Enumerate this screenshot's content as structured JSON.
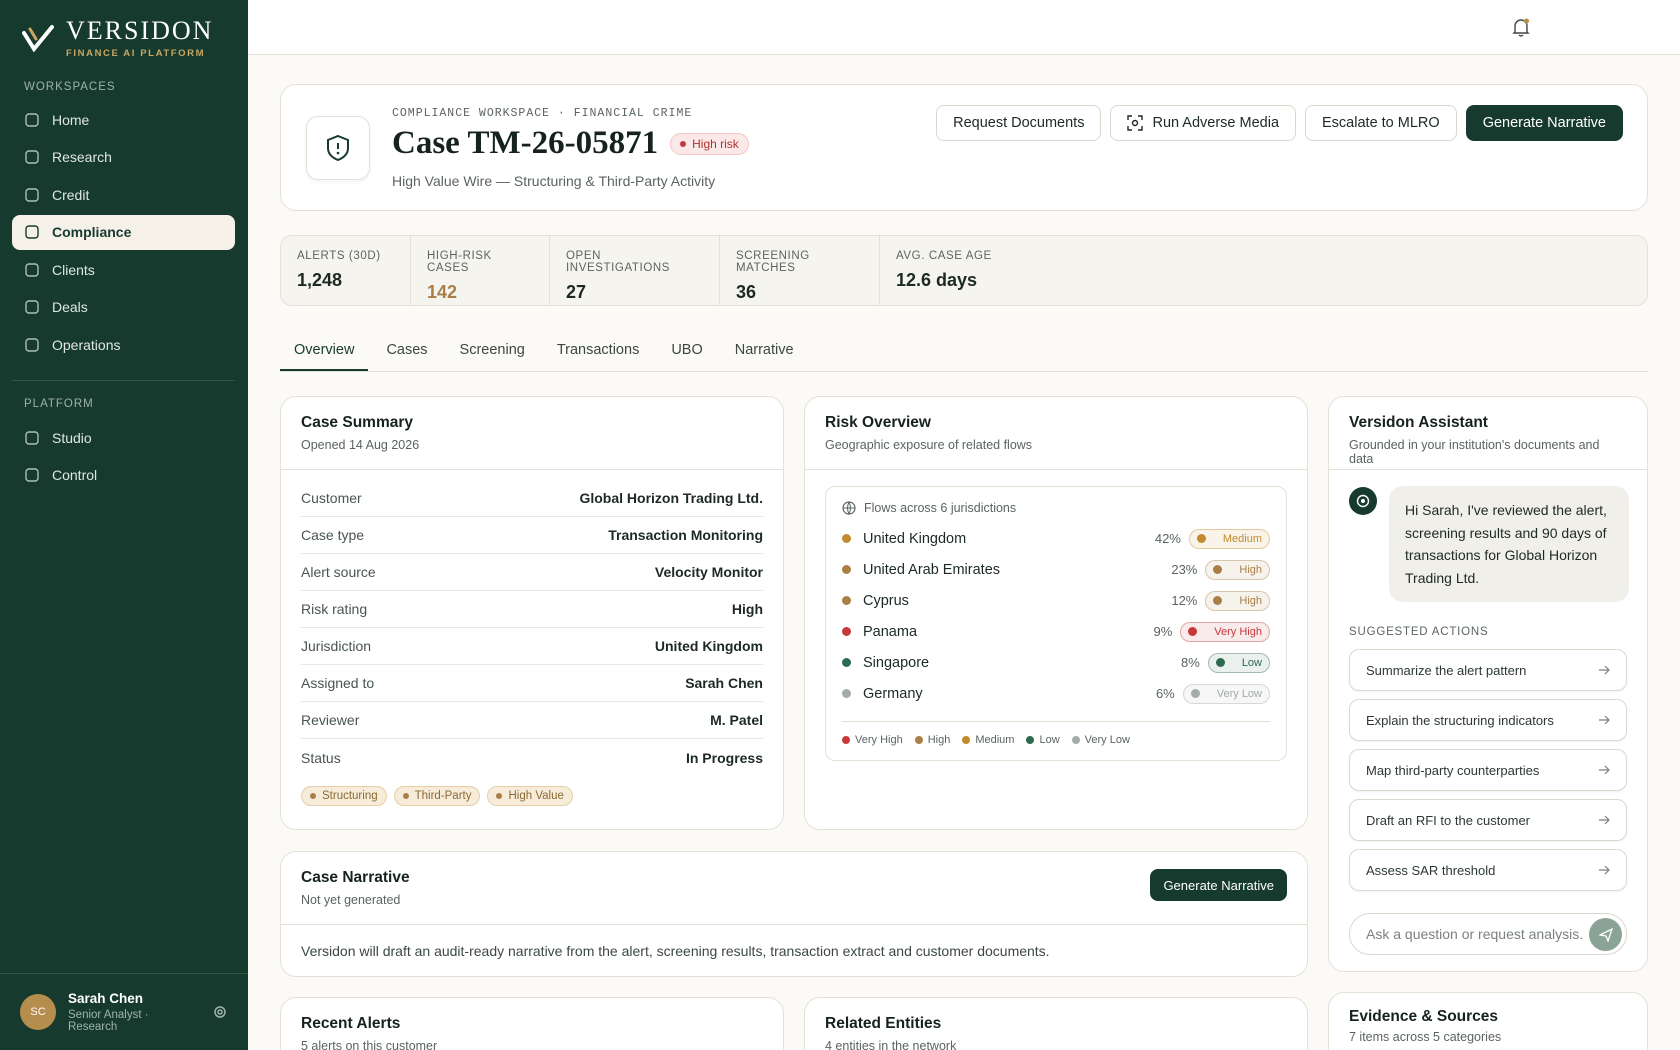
{
  "brand": {
    "name": "VERSIDON",
    "tagline": "FINANCE AI PLATFORM"
  },
  "sidebar": {
    "workspaces_label": "WORKSPACES",
    "workspaces": [
      "Home",
      "Research",
      "Credit",
      "Compliance",
      "Clients",
      "Deals",
      "Operations"
    ],
    "platform_label": "PLATFORM",
    "platform": [
      "Studio",
      "Control"
    ],
    "user": {
      "initials": "SC",
      "name": "Sarah Chen",
      "role": "Senior Analyst · Research"
    }
  },
  "header": {
    "eyebrow": "COMPLIANCE WORKSPACE · FINANCIAL CRIME",
    "title": "Case TM-26-05871",
    "risk_badge": "High risk",
    "subtitle": "High Value Wire — Structuring & Third-Party Activity",
    "actions": [
      "Request Documents",
      "Run Adverse Media",
      "Escalate to MLRO",
      "Generate Narrative"
    ]
  },
  "kpis": [
    {
      "label": "ALERTS (30D)",
      "value": "1,248"
    },
    {
      "label": "HIGH-RISK CASES",
      "value": "142"
    },
    {
      "label": "OPEN INVESTIGATIONS",
      "value": "27"
    },
    {
      "label": "SCREENING MATCHES",
      "value": "36"
    },
    {
      "label": "AVG. CASE AGE",
      "value": "12.6 days"
    }
  ],
  "tabs": [
    "Overview",
    "Cases",
    "Screening",
    "Transactions",
    "UBO",
    "Narrative"
  ],
  "case_summary": {
    "title": "Case Summary",
    "subtitle": "Opened 14 Aug 2026",
    "rows": [
      [
        "Customer",
        "Global Horizon Trading Ltd."
      ],
      [
        "Case type",
        "Transaction Monitoring"
      ],
      [
        "Alert source",
        "Velocity Monitor"
      ],
      [
        "Risk rating",
        "High"
      ],
      [
        "Jurisdiction",
        "United Kingdom"
      ],
      [
        "Assigned to",
        "Sarah Chen"
      ],
      [
        "Reviewer",
        "M. Patel"
      ],
      [
        "Status",
        "In Progress"
      ]
    ],
    "tags": [
      "Structuring",
      "Third-Party",
      "High Value"
    ]
  },
  "risk_overview": {
    "title": "Risk Overview",
    "subtitle": "Geographic exposure of related flows",
    "heading": "Flows across 6 jurisdictions",
    "rows": [
      {
        "country": "United Kingdom",
        "share": "42%",
        "level": "Medium",
        "color": "#c28a2c"
      },
      {
        "country": "United Arab Emirates",
        "share": "23%",
        "level": "High",
        "color": "#a97f45"
      },
      {
        "country": "Cyprus",
        "share": "12%",
        "level": "High",
        "color": "#a97f45"
      },
      {
        "country": "Panama",
        "share": "9%",
        "level": "Very High",
        "color": "#c6393b"
      },
      {
        "country": "Singapore",
        "share": "8%",
        "level": "Low",
        "color": "#2d6a4f"
      },
      {
        "country": "Germany",
        "share": "6%",
        "level": "Very Low",
        "color": "#a3aca6"
      }
    ],
    "legend": [
      {
        "name": "Very High",
        "color": "#c6393b"
      },
      {
        "name": "High",
        "color": "#a97f45"
      },
      {
        "name": "Medium",
        "color": "#c28a2c"
      },
      {
        "name": "Low",
        "color": "#2d6a4f"
      },
      {
        "name": "Very Low",
        "color": "#a3aca6"
      }
    ]
  },
  "assistant": {
    "title": "Versidon Assistant",
    "subtitle": "Grounded in your institution's documents and data",
    "message": "Hi Sarah, I've reviewed the alert, screening results and 90 days of transactions for Global Horizon Trading Ltd.",
    "suggested_label": "SUGGESTED ACTIONS",
    "suggestions": [
      "Summarize the alert pattern",
      "Explain the structuring indicators",
      "Map third-party counterparties",
      "Draft an RFI to the customer",
      "Assess SAR threshold"
    ],
    "input_placeholder": "Ask a question or request analysis."
  },
  "narrative": {
    "title": "Case Narrative",
    "subtitle": "Not yet generated",
    "button": "Generate Narrative",
    "body": "Versidon will draft an audit-ready narrative from the alert, screening results, transaction extract and customer documents."
  },
  "recent_alerts": {
    "title": "Recent Alerts",
    "subtitle": "5 alerts on this customer"
  },
  "related_entities": {
    "title": "Related Entities",
    "subtitle": "4 entities in the network"
  },
  "evidence": {
    "title": "Evidence & Sources",
    "subtitle": "7 items across 5 categories"
  }
}
